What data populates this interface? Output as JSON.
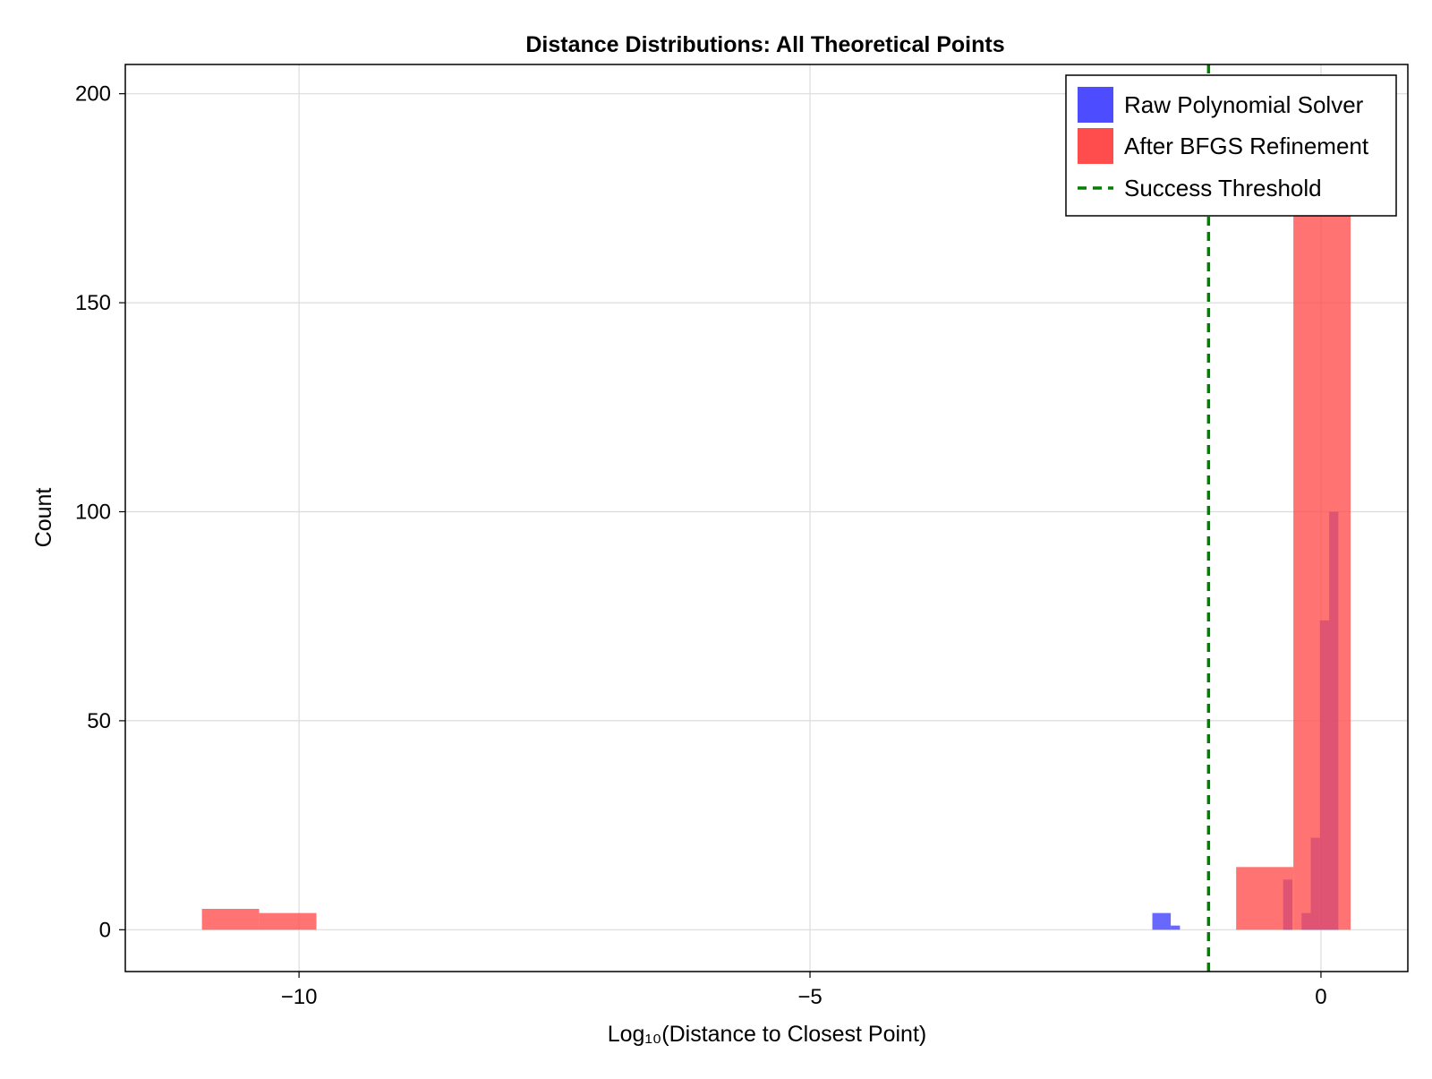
{
  "chart_data": {
    "type": "bar",
    "title": "Distance Distributions: All Theoretical Points",
    "xlabel": "Log₁₀(Distance to Closest Point)",
    "ylabel": "Count",
    "xlim": [
      -11.7,
      0.85
    ],
    "ylim": [
      -10,
      207
    ],
    "x_ticks": [
      -10,
      -5,
      0
    ],
    "x_tick_labels": [
      "−10",
      "−5",
      "0"
    ],
    "y_ticks": [
      0,
      50,
      100,
      150,
      200
    ],
    "y_tick_labels": [
      "0",
      "50",
      "100",
      "150",
      "200"
    ],
    "grid": true,
    "legend_position": "top-right",
    "series": [
      {
        "name": "Raw Polynomial Solver",
        "color": "#4d4dff",
        "bins": [
          {
            "x0": -1.65,
            "x1": -1.47,
            "count": 4
          },
          {
            "x0": -1.47,
            "x1": -1.38,
            "count": 1
          },
          {
            "x0": -0.37,
            "x1": -0.28,
            "count": 12
          },
          {
            "x0": -0.19,
            "x1": -0.1,
            "count": 4
          },
          {
            "x0": -0.1,
            "x1": -0.01,
            "count": 22
          },
          {
            "x0": -0.01,
            "x1": 0.08,
            "count": 74
          },
          {
            "x0": 0.08,
            "x1": 0.17,
            "count": 100
          }
        ]
      },
      {
        "name": "After BFGS Refinement",
        "color": "#ff4d4d",
        "bins": [
          {
            "x0": -10.95,
            "x1": -10.39,
            "count": 5
          },
          {
            "x0": -10.39,
            "x1": -9.83,
            "count": 4
          },
          {
            "x0": -0.83,
            "x1": -0.27,
            "count": 15
          },
          {
            "x0": -0.27,
            "x1": 0.29,
            "count": 187
          }
        ]
      }
    ],
    "threshold": {
      "name": "Success Threshold",
      "x": -1.1,
      "color": "#008000"
    }
  }
}
